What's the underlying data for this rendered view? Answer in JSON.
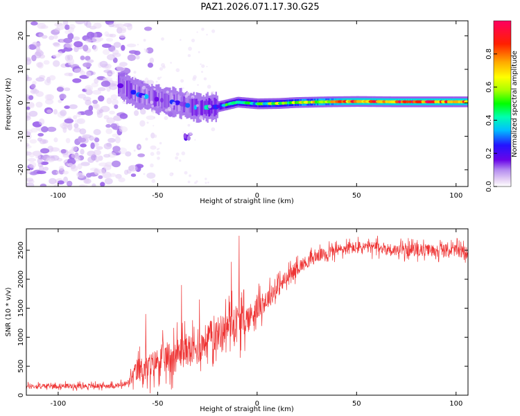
{
  "figure_title": "PAZ1.2026.071.17.30.G25",
  "chart_data": [
    {
      "type": "heatmap",
      "title": "PAZ1.2026.071.17.30.G25",
      "xlabel": "Height of straight line (km)",
      "ylabel": "Frequency (Hz)",
      "xlim": [
        -116,
        106
      ],
      "ylim": [
        -25,
        24.5
      ],
      "xticks": [
        -100,
        -50,
        0,
        50,
        100
      ],
      "yticks": [
        -20,
        -10,
        0,
        10,
        20
      ],
      "colorbar": {
        "label": "Normalized spectral amplitude",
        "range": [
          0,
          1
        ],
        "ticks": [
          0.0,
          0.2,
          0.4,
          0.6,
          0.8
        ],
        "tick_labels": [
          "0.0",
          "0.2",
          "0.4",
          "0.6",
          "0.8"
        ],
        "colormap": [
          "#ffffff",
          "#e6d2f5",
          "#a270ea",
          "#6a05e8",
          "#2314ff",
          "#00bfff",
          "#00ffb0",
          "#00ff00",
          "#a8ff00",
          "#ffff00",
          "#ffaa00",
          "#ff2000",
          "#ff0060"
        ]
      },
      "description_values": {
        "noise_region_x": [
          -116,
          -62
        ],
        "noise_amplitude": 0.2,
        "ridge": [
          {
            "x": -70,
            "freq": 5.5,
            "amp": 0.35
          },
          {
            "x": -60,
            "freq": 2.5,
            "amp": 0.3
          },
          {
            "x": -50,
            "freq": 1.0,
            "amp": 0.3
          },
          {
            "x": -40,
            "freq": 0.0,
            "amp": 0.3
          },
          {
            "x": -30,
            "freq": -1.5,
            "amp": 0.35
          },
          {
            "x": -20,
            "freq": -1.2,
            "amp": 0.4
          },
          {
            "x": -10,
            "freq": 0.2,
            "amp": 0.6
          },
          {
            "x": 0,
            "freq": -0.3,
            "amp": 0.5
          },
          {
            "x": 10,
            "freq": -0.2,
            "amp": 0.6
          },
          {
            "x": 20,
            "freq": 0.1,
            "amp": 0.65
          },
          {
            "x": 35,
            "freq": 0.3,
            "amp": 0.75
          },
          {
            "x": 50,
            "freq": 0.4,
            "amp": 0.9
          },
          {
            "x": 70,
            "freq": 0.3,
            "amp": 0.9
          },
          {
            "x": 90,
            "freq": 0.3,
            "amp": 0.9
          },
          {
            "x": 106,
            "freq": 0.3,
            "amp": 0.9
          }
        ],
        "secondary_trace": [
          {
            "x": -35,
            "freq": -10,
            "amp": 0.3
          },
          {
            "x": -45,
            "freq": -3,
            "amp": 0.2
          }
        ]
      }
    },
    {
      "type": "line",
      "xlabel": "Height of straight line (km)",
      "ylabel": "SNR (10 * v/v)",
      "xlim": [
        -116,
        106
      ],
      "ylim": [
        0,
        2870
      ],
      "xticks": [
        -100,
        -50,
        0,
        50,
        100
      ],
      "yticks": [
        0,
        500,
        1000,
        1500,
        2000,
        2500
      ],
      "color": "#ee3333",
      "series": [
        {
          "name": "SNR",
          "x": [
            -116,
            -100,
            -80,
            -70,
            -65,
            -60,
            -55,
            -50,
            -45,
            -40,
            -35,
            -30,
            -25,
            -20,
            -15,
            -10,
            -5,
            0,
            5,
            10,
            15,
            20,
            25,
            30,
            35,
            40,
            50,
            60,
            70,
            80,
            90,
            100,
            106
          ],
          "values": [
            150,
            160,
            160,
            165,
            200,
            450,
            450,
            600,
            650,
            700,
            800,
            750,
            1000,
            1050,
            1200,
            1250,
            1300,
            1500,
            1650,
            1850,
            2000,
            2200,
            2300,
            2400,
            2450,
            2500,
            2550,
            2550,
            2500,
            2500,
            2500,
            2500,
            2450
          ],
          "noise_amplitude": [
            60,
            60,
            60,
            60,
            90,
            300,
            350,
            320,
            400,
            420,
            400,
            350,
            400,
            420,
            400,
            500,
            350,
            300,
            250,
            250,
            200,
            180,
            160,
            150,
            150,
            150,
            150,
            150,
            150,
            150,
            150,
            150,
            150
          ],
          "spikes": [
            {
              "x": -56,
              "y": 1400
            },
            {
              "x": -38,
              "y": 1900
            },
            {
              "x": -9,
              "y": 2750
            },
            {
              "x": -13,
              "y": 2300
            },
            {
              "x": -29,
              "y": 1650
            }
          ]
        }
      ]
    }
  ]
}
